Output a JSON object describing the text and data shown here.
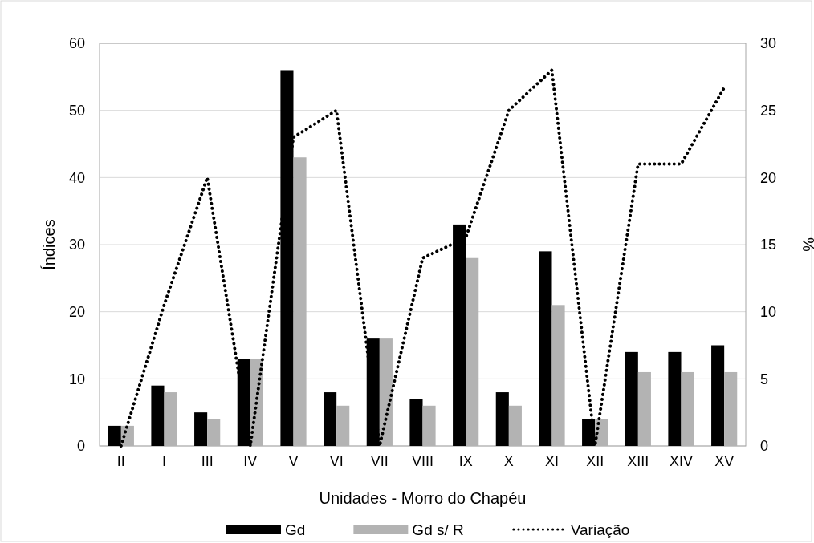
{
  "chart_data": {
    "type": "bar",
    "xlabel": "Unidades - Morro do Chapéu",
    "ylabel": "Índices",
    "y2label": "%",
    "categories": [
      "II",
      "I",
      "III",
      "IV",
      "V",
      "VI",
      "VII",
      "VIII",
      "IX",
      "X",
      "XI",
      "XII",
      "XIII",
      "XIV",
      "XV"
    ],
    "series": [
      {
        "name": "Gd",
        "color": "#000000",
        "values": [
          3,
          9,
          5,
          13,
          56,
          8,
          16,
          7,
          33,
          8,
          29,
          4,
          14,
          14,
          15
        ]
      },
      {
        "name": "Gd s/ R",
        "color": "#b3b3b3",
        "values": [
          3,
          8,
          4,
          13,
          43,
          6,
          16,
          6,
          28,
          6,
          21,
          4,
          11,
          11,
          11
        ]
      },
      {
        "name": "Variação",
        "type": "line",
        "axis": "y2",
        "color": "#000000",
        "line_style": "dotted",
        "values": [
          0,
          10.5,
          20,
          0,
          23,
          25,
          0,
          14,
          15.5,
          25,
          28,
          0,
          21,
          21,
          26.7
        ]
      }
    ],
    "ylim": [
      0,
      60
    ],
    "yticks": [
      0,
      10,
      20,
      30,
      40,
      50,
      60
    ],
    "y2lim": [
      0,
      30
    ],
    "y2ticks": [
      0,
      5,
      10,
      15,
      20,
      25,
      30
    ],
    "grid": "y",
    "legend": "bottom"
  }
}
